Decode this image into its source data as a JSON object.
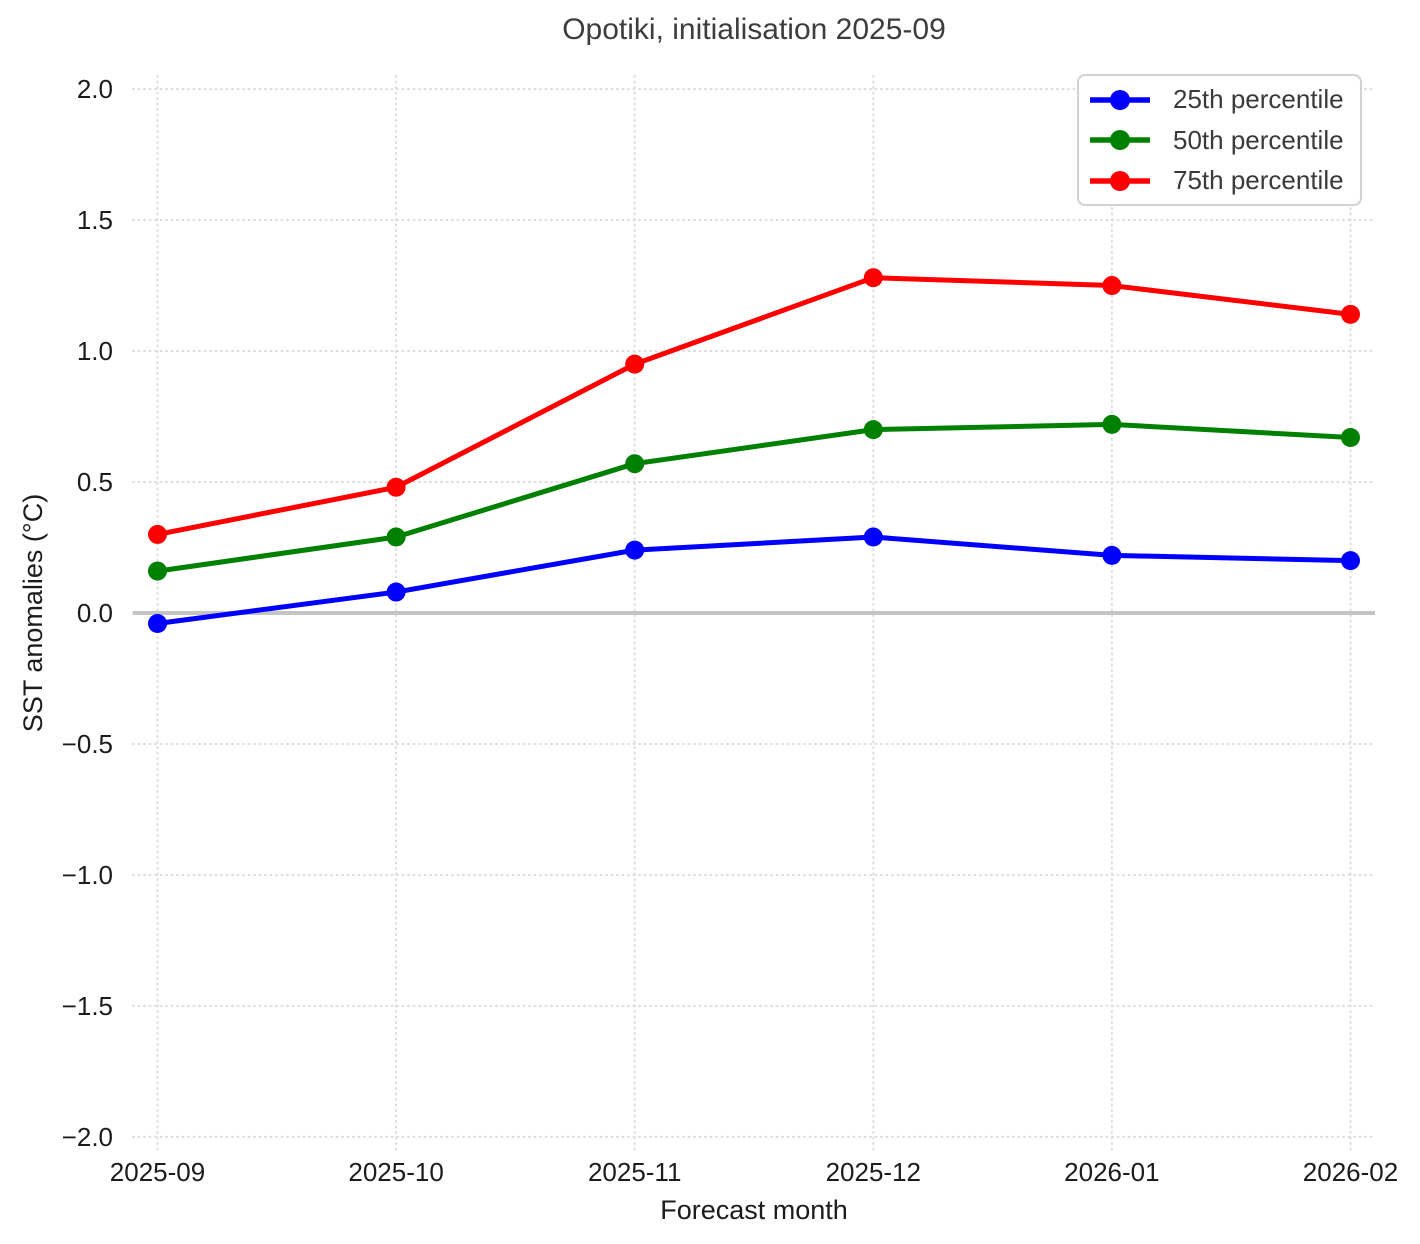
{
  "chart_data": {
    "type": "line",
    "title": "Opotiki, initialisation 2025-09",
    "xlabel": "Forecast month",
    "ylabel": "SST anomalies (°C)",
    "categories": [
      "2025-09",
      "2025-10",
      "2025-11",
      "2025-12",
      "2026-01",
      "2026-02"
    ],
    "series": [
      {
        "name": "25th percentile",
        "color": "#0000ff",
        "values": [
          -0.04,
          0.08,
          0.24,
          0.29,
          0.22,
          0.2
        ]
      },
      {
        "name": "50th percentile",
        "color": "#008000",
        "values": [
          0.16,
          0.29,
          0.57,
          0.7,
          0.72,
          0.67
        ]
      },
      {
        "name": "75th percentile",
        "color": "#ff0000",
        "values": [
          0.3,
          0.48,
          0.95,
          1.28,
          1.25,
          1.14
        ]
      }
    ],
    "ylim": [
      -2.05,
      2.05
    ],
    "yticks": [
      2.0,
      1.5,
      1.0,
      0.5,
      0.0,
      -0.5,
      -1.0,
      -1.5,
      -2.0
    ],
    "ytick_labels": [
      "2.0",
      "1.5",
      "1.0",
      "0.5",
      "0.0",
      "−0.5",
      "−1.0",
      "−1.5",
      "−2.0"
    ],
    "grid": true,
    "zero_line": true,
    "legend_position": "upper right",
    "style": {
      "grid_color": "#dcdcdc",
      "zero_line_color": "#c4c4c4",
      "line_width": 5,
      "marker_radius": 9.5
    }
  }
}
